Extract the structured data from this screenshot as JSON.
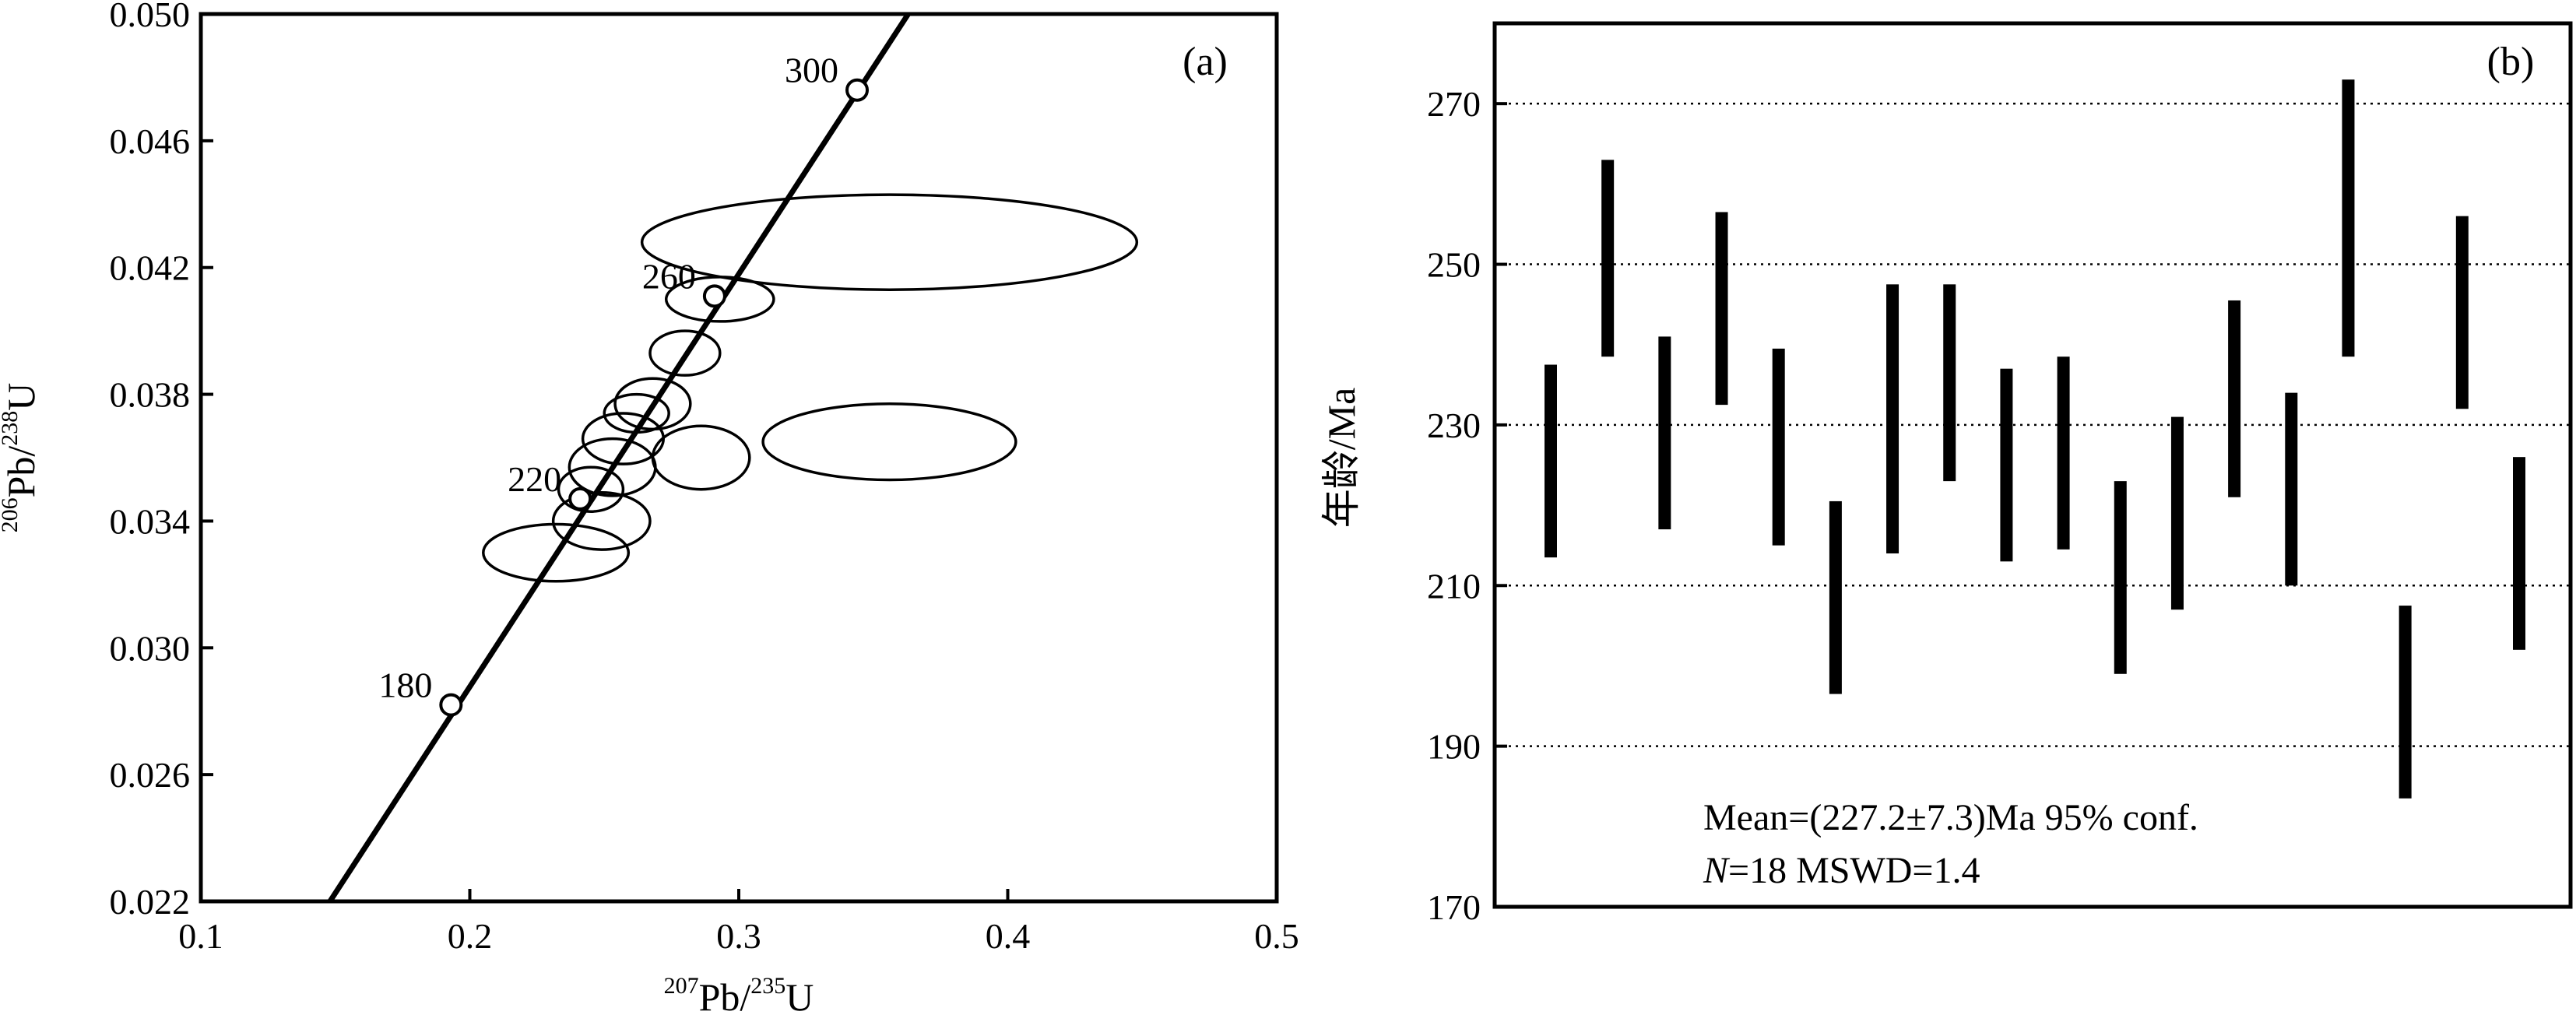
{
  "chart_data": [
    {
      "type": "scatter",
      "panel_label": "(a)",
      "xlabel": {
        "iso1": "207",
        "el1": "Pb/",
        "iso2": "235",
        "el2": "U"
      },
      "ylabel": {
        "iso1": "206",
        "el1": "Pb/",
        "iso2": "238",
        "el2": "U"
      },
      "xlim": [
        0.1,
        0.5
      ],
      "ylim": [
        0.022,
        0.05
      ],
      "x_ticks": [
        "0.1",
        "0.2",
        "0.3",
        "0.4",
        "0.5"
      ],
      "y_ticks": [
        "0.022",
        "0.026",
        "0.030",
        "0.034",
        "0.038",
        "0.042",
        "0.046",
        "0.050"
      ],
      "concordia_line": [
        [
          0.148,
          0.022
        ],
        [
          0.363,
          0.05
        ]
      ],
      "age_markers": [
        {
          "label": "180",
          "x": 0.193,
          "y": 0.0282
        },
        {
          "label": "220",
          "x": 0.241,
          "y": 0.0347
        },
        {
          "label": "260",
          "x": 0.291,
          "y": 0.0411
        },
        {
          "label": "300",
          "x": 0.344,
          "y": 0.0476
        }
      ],
      "ellipses": [
        {
          "cx": 0.356,
          "cy": 0.0428,
          "rx": 0.092,
          "ry": 0.0015,
          "angle_deg": 0.0
        },
        {
          "cx": 0.356,
          "cy": 0.0365,
          "rx": 0.047,
          "ry": 0.0012,
          "angle_deg": 0.0
        },
        {
          "cx": 0.293,
          "cy": 0.041,
          "rx": 0.02,
          "ry": 0.0007,
          "angle_deg": 0.0
        },
        {
          "cx": 0.28,
          "cy": 0.0393,
          "rx": 0.013,
          "ry": 0.0007,
          "angle_deg": 0.0
        },
        {
          "cx": 0.268,
          "cy": 0.0377,
          "rx": 0.014,
          "ry": 0.0008,
          "angle_deg": 0.0
        },
        {
          "cx": 0.262,
          "cy": 0.0374,
          "rx": 0.012,
          "ry": 0.0006,
          "angle_deg": 0.0
        },
        {
          "cx": 0.257,
          "cy": 0.0366,
          "rx": 0.015,
          "ry": 0.0008,
          "angle_deg": 0.0
        },
        {
          "cx": 0.286,
          "cy": 0.036,
          "rx": 0.018,
          "ry": 0.001,
          "angle_deg": 0.0
        },
        {
          "cx": 0.253,
          "cy": 0.0357,
          "rx": 0.016,
          "ry": 0.0009,
          "angle_deg": 0.0
        },
        {
          "cx": 0.245,
          "cy": 0.035,
          "rx": 0.012,
          "ry": 0.0007,
          "angle_deg": 0.0
        },
        {
          "cx": 0.249,
          "cy": 0.034,
          "rx": 0.018,
          "ry": 0.0009,
          "angle_deg": 0.0
        },
        {
          "cx": 0.232,
          "cy": 0.033,
          "rx": 0.027,
          "ry": 0.0009,
          "angle_deg": 0.0
        }
      ]
    },
    {
      "type": "bar",
      "panel_label": "(b)",
      "ylabel": "年龄/Ma",
      "ylim": [
        170,
        280
      ],
      "y_ticks": [
        "170",
        "190",
        "210",
        "230",
        "250",
        "270"
      ],
      "grid": "horizontal dotted",
      "ranges": [
        [
          213.5,
          237.5
        ],
        [
          238.5,
          263.0
        ],
        [
          217.0,
          241.0
        ],
        [
          232.5,
          256.5
        ],
        [
          215.0,
          239.5
        ],
        [
          196.5,
          220.5
        ],
        [
          214.0,
          247.5
        ],
        [
          223.0,
          247.5
        ],
        [
          213.0,
          237.0
        ],
        [
          214.5,
          238.5
        ],
        [
          199.0,
          223.0
        ],
        [
          207.0,
          231.0
        ],
        [
          221.0,
          245.5
        ],
        [
          210.0,
          234.0
        ],
        [
          238.5,
          273.0
        ],
        [
          183.5,
          207.5
        ],
        [
          232.0,
          256.0
        ],
        [
          202.0,
          226.0
        ]
      ],
      "stats": {
        "line1_prefix": "Mean=(227.2±7.3)Ma",
        "line1_suffix": "95% conf.",
        "line2_italic": "N",
        "line2_rest": "=18  MSWD=1.4"
      }
    }
  ]
}
